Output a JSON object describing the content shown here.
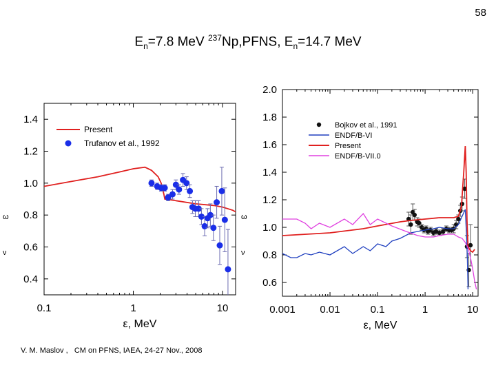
{
  "slide": {
    "page_number": "58",
    "title": {
      "left_prefix": "E",
      "left_sub": "n",
      "left_rest": "=7.8 MeV ",
      "sup": "237",
      "mid": "Np,PFNS, E",
      "right_sub": "n",
      "right_rest": "=14.7 MeV"
    },
    "footer": "V. M. Maslov ,   CM on PFNS, IAEA, 24-27 Nov., 2008"
  },
  "colors": {
    "present": "#e0201f",
    "experiment_left": "#1a2ee8",
    "endf_b6": "#1f3fbf",
    "endf_b7": "#e040e0",
    "exp_right": "#111111",
    "errorbar_left": "#6a6ab0",
    "errorbar_right": "#555555"
  },
  "chart_data": [
    {
      "type": "line",
      "xscale": "log",
      "xlim": [
        0.1,
        14
      ],
      "ylim": [
        0.3,
        1.5
      ],
      "xlabel": "ε, MeV",
      "ylabel": "",
      "x_ticks": [
        {
          "v": 0.1,
          "label": "0.1"
        },
        {
          "v": 1,
          "label": "1"
        },
        {
          "v": 10,
          "label": "10"
        }
      ],
      "y_ticks": [
        {
          "v": 0.4,
          "label": "0.4"
        },
        {
          "v": 0.6,
          "label": "0.6"
        },
        {
          "v": 0.8,
          "label": "0.8"
        },
        {
          "v": 1.0,
          "label": "1.0"
        },
        {
          "v": 1.2,
          "label": "1.2"
        },
        {
          "v": 1.4,
          "label": "1.4"
        }
      ],
      "legend_position": "top-left",
      "series": [
        {
          "name": "Present",
          "kind": "line",
          "color": "#e0201f",
          "points": [
            [
              0.1,
              0.98
            ],
            [
              0.2,
              1.01
            ],
            [
              0.4,
              1.04
            ],
            [
              0.7,
              1.07
            ],
            [
              1.0,
              1.09
            ],
            [
              1.35,
              1.1
            ],
            [
              1.6,
              1.08
            ],
            [
              1.9,
              1.04
            ],
            [
              2.05,
              1.0
            ],
            [
              2.2,
              0.93
            ],
            [
              2.25,
              0.9
            ],
            [
              3,
              0.89
            ],
            [
              5,
              0.87
            ],
            [
              8,
              0.86
            ],
            [
              10,
              0.85
            ],
            [
              13,
              0.83
            ],
            [
              14,
              0.82
            ]
          ]
        },
        {
          "name": "Trufanov et al., 1992",
          "kind": "scatter",
          "color": "#1a2ee8",
          "points": [
            [
              1.6,
              1.0,
              0.02
            ],
            [
              1.85,
              0.98,
              0.02
            ],
            [
              2.05,
              0.97,
              0.02
            ],
            [
              2.25,
              0.97,
              0.02
            ],
            [
              2.45,
              0.91,
              0.02
            ],
            [
              2.75,
              0.93,
              0.03
            ],
            [
              3.0,
              0.99,
              0.03
            ],
            [
              3.25,
              0.96,
              0.03
            ],
            [
              3.6,
              1.02,
              0.04
            ],
            [
              3.95,
              1.0,
              0.04
            ],
            [
              4.3,
              0.95,
              0.04
            ],
            [
              4.6,
              0.85,
              0.04
            ],
            [
              4.95,
              0.84,
              0.05
            ],
            [
              5.4,
              0.84,
              0.05
            ],
            [
              5.8,
              0.79,
              0.05
            ],
            [
              6.3,
              0.73,
              0.06
            ],
            [
              6.8,
              0.78,
              0.06
            ],
            [
              7.3,
              0.8,
              0.07
            ],
            [
              7.9,
              0.72,
              0.08
            ],
            [
              8.6,
              0.88,
              0.1
            ],
            [
              9.3,
              0.61,
              0.12
            ],
            [
              9.8,
              0.95,
              0.15
            ],
            [
              10.6,
              0.77,
              0.2
            ],
            [
              11.5,
              0.46,
              0.25
            ]
          ]
        }
      ]
    },
    {
      "type": "line",
      "xscale": "log",
      "xlim": [
        0.001,
        13
      ],
      "ylim": [
        0.5,
        2.0
      ],
      "xlabel": "ε, MeV",
      "ylabel": "",
      "x_ticks": [
        {
          "v": 0.001,
          "label": "0.001"
        },
        {
          "v": 0.01,
          "label": "0.01"
        },
        {
          "v": 0.1,
          "label": "0.1"
        },
        {
          "v": 1,
          "label": "1"
        },
        {
          "v": 10,
          "label": "10"
        }
      ],
      "y_ticks": [
        {
          "v": 0.6,
          "label": "0.6"
        },
        {
          "v": 0.8,
          "label": "0.8"
        },
        {
          "v": 1.0,
          "label": "1.0"
        },
        {
          "v": 1.2,
          "label": "1.2"
        },
        {
          "v": 1.4,
          "label": "1.4"
        },
        {
          "v": 1.6,
          "label": "1.6"
        },
        {
          "v": 1.8,
          "label": "1.8"
        },
        {
          "v": 2.0,
          "label": "2.0"
        }
      ],
      "legend_position": "top-left",
      "series": [
        {
          "name": "Bojkov et al., 1991",
          "kind": "scatter",
          "color": "#111111",
          "points": [
            [
              0.45,
              1.06,
              0.05
            ],
            [
              0.5,
              1.02,
              0.07
            ],
            [
              0.55,
              1.11,
              0.06
            ],
            [
              0.6,
              1.09,
              0.04
            ],
            [
              0.68,
              1.04,
              0.03
            ],
            [
              0.75,
              1.03,
              0.03
            ],
            [
              0.85,
              1.0,
              0.02
            ],
            [
              0.95,
              0.98,
              0.02
            ],
            [
              1.05,
              0.99,
              0.02
            ],
            [
              1.15,
              0.97,
              0.02
            ],
            [
              1.3,
              0.98,
              0.02
            ],
            [
              1.5,
              0.96,
              0.02
            ],
            [
              1.7,
              0.97,
              0.02
            ],
            [
              2.0,
              0.96,
              0.02
            ],
            [
              2.4,
              0.97,
              0.02
            ],
            [
              2.8,
              0.99,
              0.02
            ],
            [
              3.2,
              0.98,
              0.02
            ],
            [
              3.6,
              0.98,
              0.02
            ],
            [
              4.0,
              0.99,
              0.03
            ],
            [
              4.5,
              1.02,
              0.03
            ],
            [
              5.0,
              1.06,
              0.03
            ],
            [
              5.5,
              1.12,
              0.04
            ],
            [
              6.0,
              1.17,
              0.05
            ],
            [
              6.8,
              1.28,
              0.07
            ],
            [
              7.6,
              0.86,
              0.08
            ],
            [
              8.3,
              0.69,
              0.12
            ],
            [
              9.0,
              0.87,
              0.15
            ]
          ]
        },
        {
          "name": "ENDF/B-VI",
          "kind": "line",
          "color": "#1f3fbf",
          "points": [
            [
              0.001,
              0.81
            ],
            [
              0.0015,
              0.78
            ],
            [
              0.002,
              0.78
            ],
            [
              0.003,
              0.81
            ],
            [
              0.004,
              0.8
            ],
            [
              0.006,
              0.82
            ],
            [
              0.01,
              0.8
            ],
            [
              0.02,
              0.86
            ],
            [
              0.03,
              0.81
            ],
            [
              0.05,
              0.86
            ],
            [
              0.07,
              0.83
            ],
            [
              0.1,
              0.88
            ],
            [
              0.15,
              0.86
            ],
            [
              0.2,
              0.9
            ],
            [
              0.3,
              0.92
            ],
            [
              0.5,
              0.96
            ],
            [
              0.7,
              0.97
            ],
            [
              1,
              0.98
            ],
            [
              1.5,
              0.99
            ],
            [
              2,
              1.0
            ],
            [
              3,
              0.99
            ],
            [
              4,
              0.99
            ],
            [
              5,
              1.02
            ],
            [
              6,
              1.08
            ],
            [
              7,
              1.13
            ],
            [
              7.4,
              0.95
            ],
            [
              7.7,
              0.8
            ],
            [
              8,
              0.55
            ]
          ]
        },
        {
          "name": "Present",
          "kind": "line",
          "color": "#e0201f",
          "points": [
            [
              0.001,
              0.94
            ],
            [
              0.01,
              0.96
            ],
            [
              0.05,
              0.99
            ],
            [
              0.1,
              1.01
            ],
            [
              0.3,
              1.04
            ],
            [
              0.5,
              1.05
            ],
            [
              1,
              1.06
            ],
            [
              2,
              1.07
            ],
            [
              3,
              1.07
            ],
            [
              4,
              1.07
            ],
            [
              5,
              1.08
            ],
            [
              5.8,
              1.15
            ],
            [
              6.5,
              1.4
            ],
            [
              7.0,
              1.59
            ],
            [
              7.3,
              1.4
            ],
            [
              7.6,
              1.05
            ],
            [
              8,
              0.86
            ],
            [
              9,
              0.83
            ],
            [
              10,
              0.82
            ],
            [
              11,
              0.84
            ]
          ]
        },
        {
          "name": "ENDF/B-VII.0",
          "kind": "line",
          "color": "#e040e0",
          "points": [
            [
              0.001,
              1.06
            ],
            [
              0.0015,
              1.06
            ],
            [
              0.002,
              1.06
            ],
            [
              0.003,
              1.03
            ],
            [
              0.004,
              0.99
            ],
            [
              0.006,
              1.03
            ],
            [
              0.01,
              1.0
            ],
            [
              0.02,
              1.06
            ],
            [
              0.03,
              1.02
            ],
            [
              0.05,
              1.1
            ],
            [
              0.07,
              1.02
            ],
            [
              0.1,
              1.06
            ],
            [
              0.2,
              1.01
            ],
            [
              0.4,
              0.97
            ],
            [
              0.7,
              0.94
            ],
            [
              1,
              0.93
            ],
            [
              1.5,
              0.93
            ],
            [
              2,
              0.94
            ],
            [
              3,
              0.95
            ],
            [
              4,
              0.95
            ],
            [
              5,
              0.93
            ],
            [
              6,
              0.92
            ],
            [
              7,
              0.89
            ],
            [
              8,
              0.85
            ],
            [
              9,
              0.78
            ],
            [
              10,
              0.7
            ],
            [
              11,
              0.61
            ],
            [
              12,
              0.55
            ]
          ]
        }
      ]
    }
  ]
}
